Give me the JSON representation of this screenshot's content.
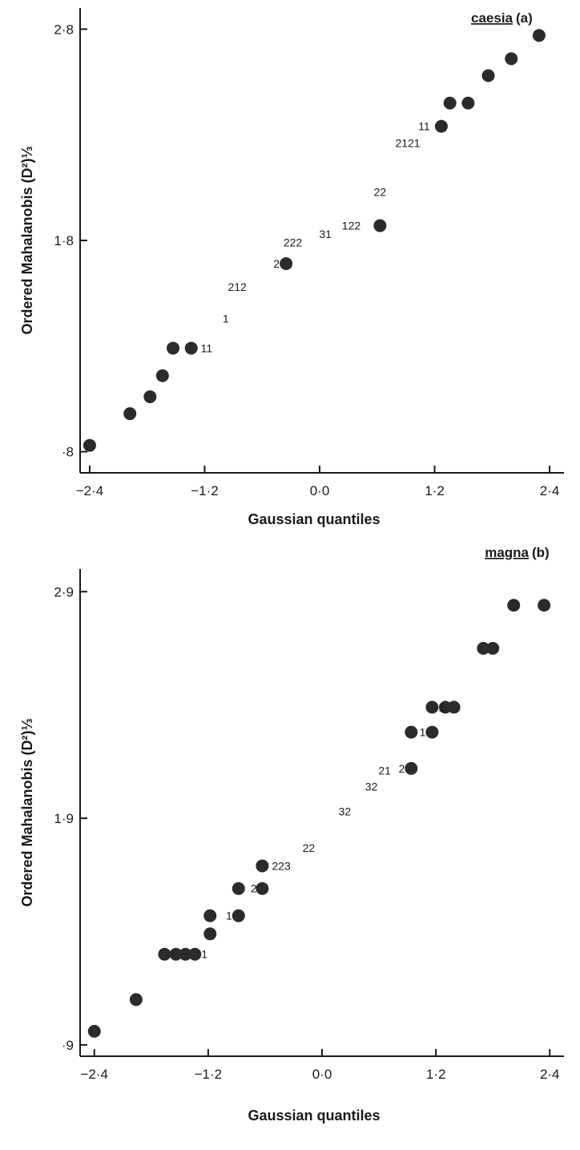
{
  "chart_data": [
    {
      "type": "scatter",
      "title": "caesia",
      "panel_tag": "(a)",
      "xlabel": "Gaussian quantiles",
      "ylabel": "Ordered Mahalanobis (D²)⅓",
      "xlim": [
        -2.5,
        2.55
      ],
      "ylim": [
        0.7,
        2.9
      ],
      "xticks": [
        -2.4,
        -1.2,
        0.0,
        1.2,
        2.4
      ],
      "xtick_labels": [
        "−2·4",
        "−1·2",
        "0·0",
        "1·2",
        "2·4"
      ],
      "yticks": [
        0.8,
        1.8,
        2.8
      ],
      "ytick_labels": [
        "·8",
        "1·8",
        "2·8"
      ],
      "points": [
        {
          "x": -2.4,
          "y": 0.83
        },
        {
          "x": -1.98,
          "y": 0.98
        },
        {
          "x": -1.77,
          "y": 1.06
        },
        {
          "x": -1.64,
          "y": 1.16
        },
        {
          "x": -1.53,
          "y": 1.29
        },
        {
          "x": -1.34,
          "y": 1.29
        },
        {
          "x": -0.35,
          "y": 1.69
        },
        {
          "x": 0.63,
          "y": 1.87
        },
        {
          "x": 1.27,
          "y": 2.34
        },
        {
          "x": 1.36,
          "y": 2.45
        },
        {
          "x": 1.55,
          "y": 2.45
        },
        {
          "x": 1.76,
          "y": 2.58
        },
        {
          "x": 2.0,
          "y": 2.66
        },
        {
          "x": 2.29,
          "y": 2.77
        }
      ],
      "point_labels": [
        {
          "text": "11",
          "x": -1.18,
          "y": 1.29
        },
        {
          "text": "1",
          "x": -0.98,
          "y": 1.43
        },
        {
          "text": "212",
          "x": -0.86,
          "y": 1.58
        },
        {
          "text": "2",
          "x": -0.45,
          "y": 1.69
        },
        {
          "text": "222",
          "x": -0.28,
          "y": 1.79
        },
        {
          "text": "31",
          "x": 0.06,
          "y": 1.83
        },
        {
          "text": "122",
          "x": 0.33,
          "y": 1.87
        },
        {
          "text": "22",
          "x": 0.63,
          "y": 2.03
        },
        {
          "text": "2121",
          "x": 0.92,
          "y": 2.26
        },
        {
          "text": "11",
          "x": 1.09,
          "y": 2.34
        }
      ]
    },
    {
      "type": "scatter",
      "title": "magna",
      "panel_tag": "(b)",
      "xlabel": "Gaussian quantiles",
      "ylabel": "Ordered Mahalanobis (D²)⅓",
      "xlim": [
        -2.55,
        2.55
      ],
      "ylim": [
        0.85,
        3.0
      ],
      "xticks": [
        -2.4,
        -1.2,
        0.0,
        1.2,
        2.4
      ],
      "xtick_labels": [
        "−2·4",
        "−1·2",
        "0·0",
        "1·2",
        "2·4"
      ],
      "yticks": [
        0.9,
        1.9,
        2.9
      ],
      "ytick_labels": [
        "·9",
        "1·9",
        "2·9"
      ],
      "points": [
        {
          "x": -2.4,
          "y": 0.96
        },
        {
          "x": -1.96,
          "y": 1.1
        },
        {
          "x": -1.66,
          "y": 1.3
        },
        {
          "x": -1.54,
          "y": 1.3
        },
        {
          "x": -1.44,
          "y": 1.3
        },
        {
          "x": -1.34,
          "y": 1.3
        },
        {
          "x": -1.18,
          "y": 1.39
        },
        {
          "x": -1.18,
          "y": 1.47
        },
        {
          "x": -0.88,
          "y": 1.47
        },
        {
          "x": -0.88,
          "y": 1.59
        },
        {
          "x": -0.63,
          "y": 1.59
        },
        {
          "x": -0.63,
          "y": 1.69
        },
        {
          "x": 0.94,
          "y": 2.12
        },
        {
          "x": 0.94,
          "y": 2.28
        },
        {
          "x": 1.16,
          "y": 2.28
        },
        {
          "x": 1.16,
          "y": 2.39
        },
        {
          "x": 1.3,
          "y": 2.39
        },
        {
          "x": 1.39,
          "y": 2.39
        },
        {
          "x": 1.7,
          "y": 2.65
        },
        {
          "x": 1.8,
          "y": 2.65
        },
        {
          "x": 2.02,
          "y": 2.84
        },
        {
          "x": 2.34,
          "y": 2.84
        }
      ],
      "point_labels": [
        {
          "text": "1",
          "x": -1.24,
          "y": 1.3
        },
        {
          "text": "1",
          "x": -0.98,
          "y": 1.47
        },
        {
          "text": "2",
          "x": -0.72,
          "y": 1.59
        },
        {
          "text": "223",
          "x": -0.43,
          "y": 1.69
        },
        {
          "text": "22",
          "x": -0.14,
          "y": 1.77
        },
        {
          "text": "32",
          "x": 0.24,
          "y": 1.93
        },
        {
          "text": "32",
          "x": 0.52,
          "y": 2.04
        },
        {
          "text": "21",
          "x": 0.66,
          "y": 2.11
        },
        {
          "text": "2",
          "x": 0.84,
          "y": 2.12
        },
        {
          "text": "1",
          "x": 1.06,
          "y": 2.28
        },
        {
          "text": "1",
          "x": 1.26,
          "y": 2.39
        }
      ]
    }
  ]
}
